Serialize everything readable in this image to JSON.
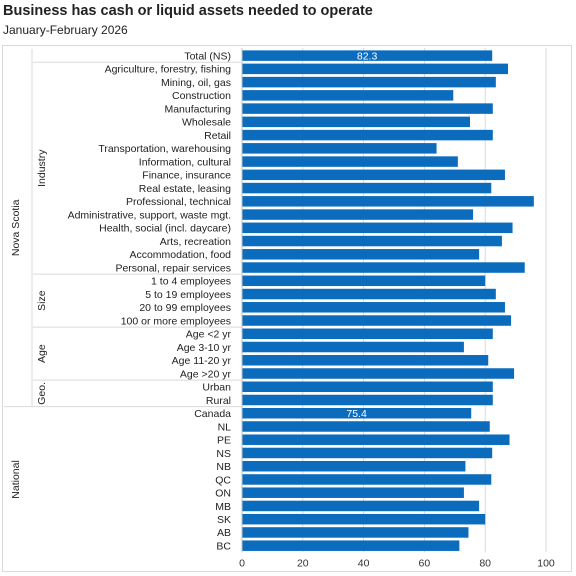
{
  "chart_data": {
    "type": "bar",
    "orientation": "horizontal",
    "title": "Business has cash or liquid assets needed to operate",
    "subtitle": "January-February  2026",
    "xlim": [
      0,
      100
    ],
    "xticks": [
      0,
      20,
      40,
      60,
      80,
      100
    ],
    "grid": true,
    "bar_color": "#0b6cbd",
    "data_labels": [
      {
        "category": "Total (NS)",
        "text": "82.3"
      },
      {
        "category": "Canada",
        "text": "75.4"
      }
    ],
    "groups": [
      {
        "name": "",
        "outer": "Nova Scotia",
        "items": [
          {
            "label": "Total (NS)",
            "value": 82.3
          }
        ]
      },
      {
        "name": "Industry",
        "outer": "Nova Scotia",
        "items": [
          {
            "label": "Agriculture, forestry, fishing",
            "value": 87.5
          },
          {
            "label": "Mining, oil, gas",
            "value": 83.5
          },
          {
            "label": "Construction",
            "value": 69.5
          },
          {
            "label": "Manufacturing",
            "value": 82.5
          },
          {
            "label": "Wholesale",
            "value": 75.0
          },
          {
            "label": "Retail",
            "value": 82.5
          },
          {
            "label": "Transportation, warehousing",
            "value": 64.0
          },
          {
            "label": "Information, cultural",
            "value": 71.0
          },
          {
            "label": "Finance, insurance",
            "value": 86.5
          },
          {
            "label": "Real estate, leasing",
            "value": 82.0
          },
          {
            "label": "Professional, technical",
            "value": 96.0
          },
          {
            "label": "Administrative, support, waste mgt.",
            "value": 76.0
          },
          {
            "label": "Health, social (incl. daycare)",
            "value": 89.0
          },
          {
            "label": "Arts, recreation",
            "value": 85.5
          },
          {
            "label": "Accommodation, food",
            "value": 78.0
          },
          {
            "label": "Personal, repair services",
            "value": 93.0
          }
        ]
      },
      {
        "name": "Size",
        "outer": "Nova Scotia",
        "items": [
          {
            "label": "1 to 4 employees",
            "value": 80.0
          },
          {
            "label": "5 to 19 employees",
            "value": 83.5
          },
          {
            "label": "20 to 99 employees",
            "value": 86.5
          },
          {
            "label": "100 or more employees",
            "value": 88.5
          }
        ]
      },
      {
        "name": "Age",
        "outer": "Nova Scotia",
        "items": [
          {
            "label": "Age <2 yr",
            "value": 82.5
          },
          {
            "label": "Age 3-10 yr",
            "value": 73.0
          },
          {
            "label": "Age 11-20 yr",
            "value": 81.0
          },
          {
            "label": "Age >20 yr",
            "value": 89.5
          }
        ]
      },
      {
        "name": "Geo.",
        "outer": "Nova Scotia",
        "items": [
          {
            "label": "Urban",
            "value": 82.5
          },
          {
            "label": "Rural",
            "value": 82.5
          }
        ]
      },
      {
        "name": "National",
        "outer": "",
        "items": [
          {
            "label": "Canada",
            "value": 75.4
          },
          {
            "label": "NL",
            "value": 81.5
          },
          {
            "label": "PE",
            "value": 88.0
          },
          {
            "label": "NS",
            "value": 82.3
          },
          {
            "label": "NB",
            "value": 73.5
          },
          {
            "label": "QC",
            "value": 82.0
          },
          {
            "label": "ON",
            "value": 73.0
          },
          {
            "label": "MB",
            "value": 78.0
          },
          {
            "label": "SK",
            "value": 80.0
          },
          {
            "label": "AB",
            "value": 74.5
          },
          {
            "label": "BC",
            "value": 71.5
          }
        ]
      }
    ]
  }
}
